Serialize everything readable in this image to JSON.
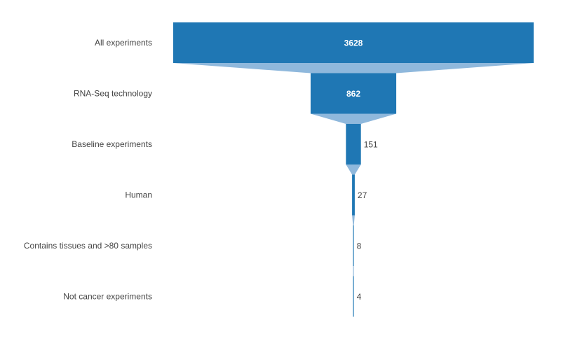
{
  "chart_data": {
    "type": "funnel",
    "categories": [
      "All experiments",
      "RNA-Seq technology",
      "Baseline experiments",
      "Human",
      "Contains tissues and >80 samples",
      "Not cancer experiments"
    ],
    "values": [
      3628,
      862,
      151,
      27,
      8,
      4
    ],
    "colors": {
      "bar": "#1f77b4",
      "connector": "#8fb8dc",
      "inside_label": "#ffffff",
      "outside_label": "#444444",
      "axis_label": "#444444"
    }
  }
}
